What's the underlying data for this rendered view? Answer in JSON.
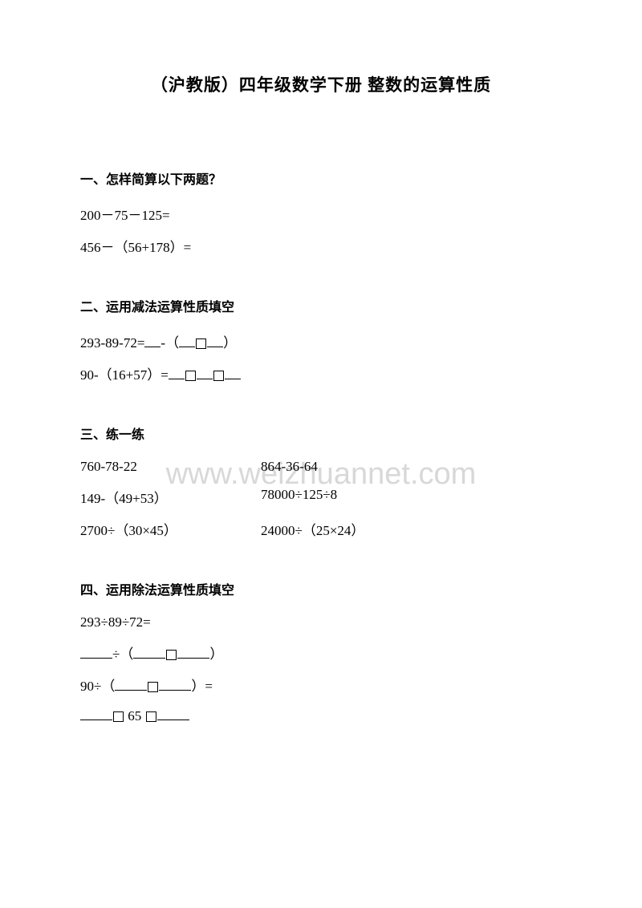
{
  "title": "（沪教版）四年级数学下册 整数的运算性质",
  "watermark": "www.weizhuannet.com",
  "sections": {
    "one": {
      "heading": "一、怎样简算以下两题？",
      "problems": [
        "200－75－125=",
        "456－（56+178）="
      ]
    },
    "two": {
      "heading": "二、运用减法运算性质填空",
      "p1_prefix": "293-89-72=",
      "p1_mid": "-（",
      "p1_end": "）",
      "p2_prefix": "90-（16+57）="
    },
    "three": {
      "heading": "三、练一练",
      "rows": [
        [
          "760-78-22",
          "864-36-64"
        ],
        [
          "149-（49+53）",
          "78000÷125÷8"
        ],
        [
          "2700÷（30×45）",
          "24000÷（25×24）"
        ]
      ]
    },
    "four": {
      "heading": "四、运用除法运算性质填空",
      "p1": "293÷89÷72=",
      "p2_mid": "÷（",
      "p2_end": "）",
      "p3_prefix": "90÷（",
      "p3_end": "）=",
      "p4_mid": " 65 "
    }
  }
}
